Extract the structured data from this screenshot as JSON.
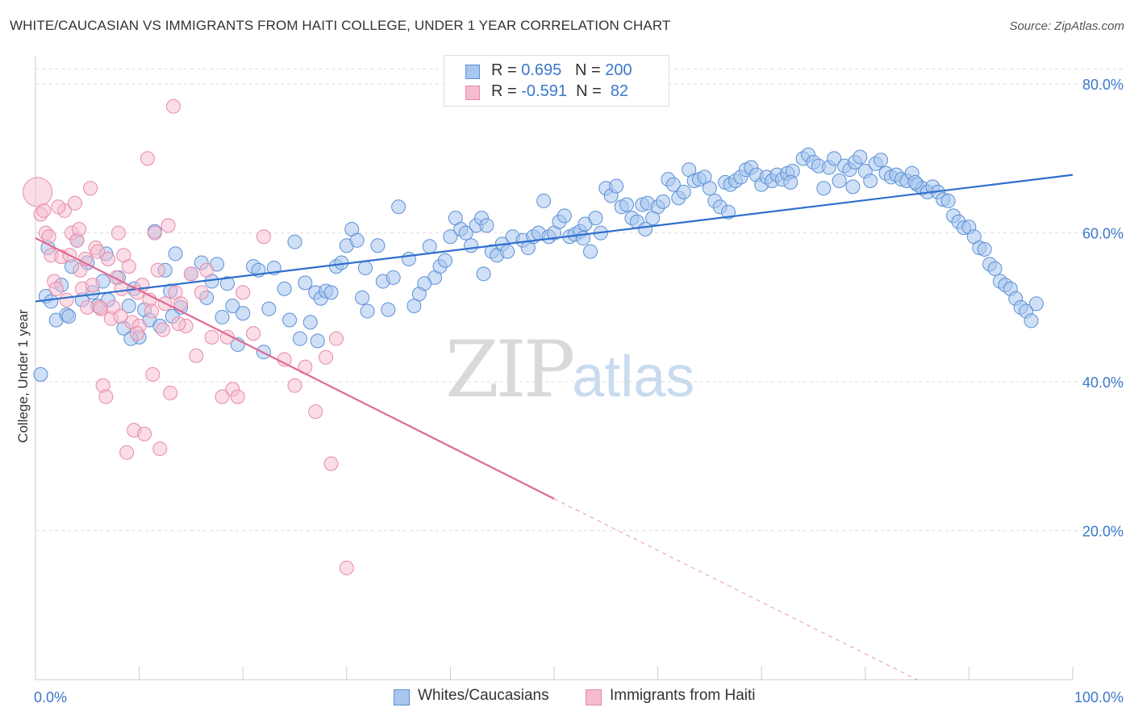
{
  "title": "WHITE/CAUCASIAN VS IMMIGRANTS FROM HAITI COLLEGE, UNDER 1 YEAR CORRELATION CHART",
  "source": "Source: ZipAtlas.com",
  "watermark": {
    "zip": "ZIP",
    "atlas": "atlas"
  },
  "colors": {
    "blue": "#5b8fd6",
    "blue_fill": "#a8c6ee",
    "blue_line": "#2f6fcc",
    "pink": "#e889a8",
    "pink_fill": "#f5bccf",
    "pink_line": "#e06a95",
    "axis_text": "#3a78c9"
  },
  "legend": {
    "rows": [
      {
        "r_label": "R = ",
        "r_value": "0.695",
        "n_label": "N = ",
        "n_value": "200"
      },
      {
        "r_label": "R = ",
        "r_value": "-0.591",
        "n_label": "N = ",
        "n_value": " 82"
      }
    ]
  },
  "bottom_legend": [
    "Whites/Caucasians",
    "Immigrants from Haiti"
  ],
  "chart_data": {
    "type": "scatter",
    "xlabel": "",
    "ylabel": "College, Under 1 year",
    "xlim": [
      0,
      100
    ],
    "ylim": [
      0,
      85
    ],
    "x_tick_labels": [
      "0.0%",
      "100.0%"
    ],
    "y_ticks": [
      20,
      40,
      60,
      80
    ],
    "y_tick_labels": [
      "20.0%",
      "40.0%",
      "60.0%",
      "80.0%"
    ],
    "grid": true,
    "series": [
      {
        "name": "Whites/Caucasians",
        "trend": {
          "x": [
            0,
            100
          ],
          "y": [
            50.8,
            67.8
          ]
        },
        "points": [
          [
            0.5,
            41
          ],
          [
            1,
            51.5
          ],
          [
            1.5,
            50.8
          ],
          [
            2,
            48.3
          ],
          [
            2.5,
            53
          ],
          [
            3,
            49
          ],
          [
            3.5,
            55.5
          ],
          [
            4,
            59
          ],
          [
            4.5,
            51
          ],
          [
            5,
            56
          ],
          [
            5.5,
            52
          ],
          [
            6,
            50.2
          ],
          [
            6.5,
            53.5
          ],
          [
            7,
            51
          ],
          [
            8,
            54
          ],
          [
            8.5,
            47.2
          ],
          [
            9,
            50.2
          ],
          [
            9.5,
            52.5
          ],
          [
            10,
            46
          ],
          [
            10.5,
            49.7
          ],
          [
            11,
            48.3
          ],
          [
            11.5,
            60.2
          ],
          [
            12,
            47.5
          ],
          [
            12.5,
            55
          ],
          [
            13,
            52.2
          ],
          [
            13.5,
            57.2
          ],
          [
            14,
            50
          ],
          [
            15,
            54.5
          ],
          [
            16,
            56
          ],
          [
            16.5,
            51.3
          ],
          [
            17,
            53.5
          ],
          [
            17.5,
            55.8
          ],
          [
            18,
            48.7
          ],
          [
            19,
            50.2
          ],
          [
            19.5,
            45
          ],
          [
            20,
            49.2
          ],
          [
            21,
            55.5
          ],
          [
            21.5,
            55
          ],
          [
            22,
            44
          ],
          [
            23,
            55.3
          ],
          [
            24,
            52.5
          ],
          [
            24.5,
            48.3
          ],
          [
            25,
            58.8
          ],
          [
            25.5,
            45.8
          ],
          [
            26,
            53.3
          ],
          [
            26.5,
            48
          ],
          [
            27,
            52
          ],
          [
            27.5,
            51.2
          ],
          [
            28,
            52.2
          ],
          [
            28.5,
            52
          ],
          [
            29,
            55.5
          ],
          [
            29.5,
            56
          ],
          [
            30,
            58.3
          ],
          [
            30.5,
            60.5
          ],
          [
            31,
            59
          ],
          [
            31.5,
            51.3
          ],
          [
            32,
            49.5
          ],
          [
            33,
            58.3
          ],
          [
            33.5,
            53.5
          ],
          [
            34,
            49.7
          ],
          [
            34.5,
            54
          ],
          [
            35,
            63.5
          ],
          [
            36,
            56.5
          ],
          [
            36.5,
            50.2
          ],
          [
            37,
            51.8
          ],
          [
            38,
            58.2
          ],
          [
            38.5,
            54
          ],
          [
            39,
            55.5
          ],
          [
            39.5,
            56.3
          ],
          [
            40,
            59.5
          ],
          [
            40.5,
            62
          ],
          [
            41,
            60.5
          ],
          [
            41.5,
            60
          ],
          [
            42,
            58.3
          ],
          [
            42.5,
            61
          ],
          [
            43,
            62
          ],
          [
            43.5,
            61
          ],
          [
            44,
            57.5
          ],
          [
            44.5,
            57
          ],
          [
            45,
            58.5
          ],
          [
            45.5,
            57.5
          ],
          [
            46,
            59.5
          ],
          [
            47,
            59
          ],
          [
            47.5,
            58
          ],
          [
            48,
            59.5
          ],
          [
            48.5,
            60
          ],
          [
            49,
            64.3
          ],
          [
            49.5,
            59.5
          ],
          [
            50,
            60
          ],
          [
            50.5,
            61.5
          ],
          [
            51,
            62.3
          ],
          [
            51.5,
            59.5
          ],
          [
            52,
            59.8
          ],
          [
            52.5,
            60.2
          ],
          [
            53,
            61.2
          ],
          [
            53.5,
            57.5
          ],
          [
            54,
            62
          ],
          [
            54.5,
            60
          ],
          [
            55,
            66
          ],
          [
            55.5,
            65
          ],
          [
            56,
            66.3
          ],
          [
            56.5,
            63.5
          ],
          [
            57,
            63.8
          ],
          [
            57.5,
            62
          ],
          [
            58,
            61.5
          ],
          [
            58.5,
            63.8
          ],
          [
            59,
            64
          ],
          [
            59.5,
            62
          ],
          [
            60,
            63.5
          ],
          [
            60.5,
            64.2
          ],
          [
            61,
            67.2
          ],
          [
            61.5,
            66.5
          ],
          [
            62,
            64.7
          ],
          [
            62.5,
            65.5
          ],
          [
            63,
            68.5
          ],
          [
            63.5,
            67
          ],
          [
            64,
            67.2
          ],
          [
            64.5,
            67.5
          ],
          [
            65,
            66
          ],
          [
            65.5,
            64.3
          ],
          [
            66,
            63.5
          ],
          [
            66.5,
            66.8
          ],
          [
            67,
            66.5
          ],
          [
            67.5,
            67
          ],
          [
            68,
            67.5
          ],
          [
            68.5,
            68.5
          ],
          [
            69,
            68.8
          ],
          [
            69.5,
            67.8
          ],
          [
            70,
            66.5
          ],
          [
            70.5,
            67.5
          ],
          [
            71,
            67
          ],
          [
            71.5,
            67.8
          ],
          [
            72,
            67.2
          ],
          [
            72.5,
            68
          ],
          [
            73,
            68.3
          ],
          [
            74,
            70
          ],
          [
            74.5,
            70.5
          ],
          [
            75,
            69.5
          ],
          [
            75.5,
            69
          ],
          [
            76,
            66
          ],
          [
            76.5,
            68.8
          ],
          [
            77,
            70
          ],
          [
            77.5,
            67
          ],
          [
            78,
            69
          ],
          [
            78.5,
            68.5
          ],
          [
            79,
            69.5
          ],
          [
            79.5,
            70.2
          ],
          [
            80,
            68.3
          ],
          [
            80.5,
            67
          ],
          [
            81,
            69.3
          ],
          [
            81.5,
            69.8
          ],
          [
            82,
            68
          ],
          [
            82.5,
            67.5
          ],
          [
            83,
            67.8
          ],
          [
            83.5,
            67.2
          ],
          [
            84,
            67
          ],
          [
            84.5,
            68
          ],
          [
            85,
            66.5
          ],
          [
            85.5,
            66
          ],
          [
            86,
            65.5
          ],
          [
            86.5,
            66.2
          ],
          [
            87,
            65.5
          ],
          [
            87.5,
            64.5
          ],
          [
            88,
            64.3
          ],
          [
            88.5,
            62.3
          ],
          [
            89,
            61.5
          ],
          [
            89.5,
            60.7
          ],
          [
            90,
            60.8
          ],
          [
            90.5,
            59.5
          ],
          [
            91,
            58
          ],
          [
            91.5,
            57.8
          ],
          [
            92,
            55.8
          ],
          [
            92.5,
            55.2
          ],
          [
            93,
            53.5
          ],
          [
            93.5,
            53
          ],
          [
            94,
            52.5
          ],
          [
            94.5,
            51.2
          ],
          [
            95,
            50
          ],
          [
            95.5,
            49.5
          ],
          [
            96,
            48.2
          ],
          [
            96.5,
            50.5
          ],
          [
            1.2,
            58
          ],
          [
            3.2,
            48.8
          ],
          [
            6.8,
            57.2
          ],
          [
            9.2,
            45.8
          ],
          [
            13.2,
            48.8
          ],
          [
            18.5,
            53.2
          ],
          [
            22.5,
            49.8
          ],
          [
            27.2,
            45.5
          ],
          [
            31.8,
            55.3
          ],
          [
            37.5,
            53.2
          ],
          [
            43.2,
            54.5
          ],
          [
            52.8,
            59.3
          ],
          [
            58.8,
            60.5
          ],
          [
            66.8,
            62.8
          ],
          [
            72.8,
            66.8
          ],
          [
            78.8,
            66.2
          ],
          [
            84.8,
            66.8
          ]
        ]
      },
      {
        "name": "Immigrants from Haiti",
        "trend": {
          "x": [
            0,
            50
          ],
          "y": [
            59.3,
            24.3
          ]
        },
        "trend_dashed": {
          "x": [
            50,
            85
          ],
          "y": [
            24.3,
            0
          ]
        },
        "points": [
          [
            0.2,
            65.5
          ],
          [
            0.5,
            62.5
          ],
          [
            0.8,
            63
          ],
          [
            1,
            60
          ],
          [
            1.3,
            59.5
          ],
          [
            1.5,
            57
          ],
          [
            1.8,
            53.5
          ],
          [
            2,
            52.5
          ],
          [
            2.5,
            56.8
          ],
          [
            2.8,
            63
          ],
          [
            3,
            51
          ],
          [
            3.3,
            57
          ],
          [
            3.5,
            60
          ],
          [
            3.8,
            64
          ],
          [
            4,
            59
          ],
          [
            4.3,
            55
          ],
          [
            4.5,
            52.5
          ],
          [
            4.8,
            56.5
          ],
          [
            5,
            50
          ],
          [
            5.3,
            66
          ],
          [
            5.5,
            53
          ],
          [
            5.8,
            58
          ],
          [
            6,
            57.5
          ],
          [
            6.3,
            49.8
          ],
          [
            6.5,
            39.5
          ],
          [
            6.8,
            38
          ],
          [
            7,
            56.5
          ],
          [
            7.3,
            48.5
          ],
          [
            7.5,
            50
          ],
          [
            7.8,
            54
          ],
          [
            8,
            60
          ],
          [
            8.3,
            52.5
          ],
          [
            8.5,
            57
          ],
          [
            8.8,
            30.5
          ],
          [
            9,
            55.5
          ],
          [
            9.3,
            48
          ],
          [
            9.5,
            33.5
          ],
          [
            9.8,
            52
          ],
          [
            10,
            47.5
          ],
          [
            10.3,
            53
          ],
          [
            10.5,
            33
          ],
          [
            10.8,
            70
          ],
          [
            11,
            51
          ],
          [
            11.3,
            41
          ],
          [
            11.5,
            60
          ],
          [
            11.8,
            55
          ],
          [
            12,
            31
          ],
          [
            12.3,
            47
          ],
          [
            12.5,
            50.5
          ],
          [
            12.8,
            61
          ],
          [
            13,
            38.5
          ],
          [
            13.3,
            77
          ],
          [
            13.5,
            52
          ],
          [
            14,
            50.5
          ],
          [
            14.5,
            47.5
          ],
          [
            15,
            54.5
          ],
          [
            15.5,
            43.5
          ],
          [
            16,
            52
          ],
          [
            16.5,
            55
          ],
          [
            17,
            46
          ],
          [
            18,
            38
          ],
          [
            18.5,
            46
          ],
          [
            19,
            39
          ],
          [
            19.5,
            38
          ],
          [
            20,
            52
          ],
          [
            21,
            46.5
          ],
          [
            22,
            59.5
          ],
          [
            24,
            43
          ],
          [
            25,
            39.5
          ],
          [
            26,
            42
          ],
          [
            27,
            36
          ],
          [
            28,
            43.3
          ],
          [
            28.5,
            29
          ],
          [
            29,
            45.8
          ],
          [
            30,
            15
          ],
          [
            2.2,
            63.5
          ],
          [
            4.2,
            60.5
          ],
          [
            6.2,
            50
          ],
          [
            8.2,
            48.8
          ],
          [
            9.8,
            46.5
          ],
          [
            11.2,
            49.5
          ],
          [
            13.8,
            47.8
          ]
        ]
      }
    ]
  }
}
